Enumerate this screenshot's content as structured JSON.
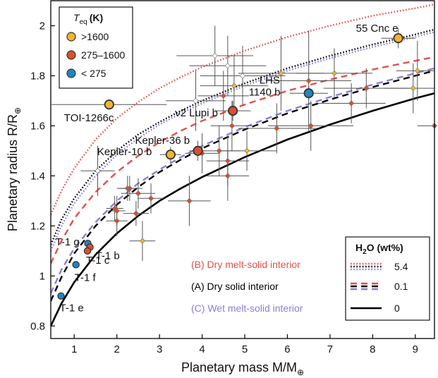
{
  "chart_data": {
    "type": "scatter",
    "xlabel": "Planetary mass M/M",
    "xlabel_sub": "⊕",
    "ylabel": "Planetary radius R/R",
    "ylabel_sub": "⊕",
    "xlim": [
      0.45,
      9.45
    ],
    "ylim": [
      0.75,
      2.1
    ],
    "xticks": [
      1,
      2,
      3,
      4,
      5,
      6,
      7,
      8,
      9
    ],
    "yticks": [
      0.8,
      1,
      1.2,
      1.4,
      1.6,
      1.8,
      2
    ],
    "grid": false,
    "legend_teq": {
      "title_main": "T",
      "title_sub": "eq",
      "title_unit": "(K)",
      "placement": "top-left",
      "entries": [
        {
          "label": ">1600",
          "color": "#f2b431"
        },
        {
          "label": "275–1600",
          "color": "#d9512c"
        },
        {
          "label": "< 275",
          "color": "#1f86c3"
        }
      ]
    },
    "legend_h2o": {
      "title_main": "H",
      "title_sub": "2",
      "title_rest": "O (wt%)",
      "placement": "bottom-right",
      "entries": [
        {
          "label": "5.4",
          "style": "dotted"
        },
        {
          "label": "0.1",
          "style": "dashed"
        },
        {
          "label": "0",
          "style": "solid"
        }
      ]
    },
    "series": [
      {
        "name": "(B) Dry melt-solid interior",
        "color": "#e0524a",
        "curves": [
          {
            "wt": "5.4",
            "style": "dotted",
            "points": [
              [
                0.45,
                1.245
              ],
              [
                0.7,
                1.34
              ],
              [
                1,
                1.43
              ],
              [
                1.5,
                1.545
              ],
              [
                2,
                1.63
              ],
              [
                2.5,
                1.695
              ],
              [
                3,
                1.75
              ],
              [
                3.5,
                1.795
              ],
              [
                4,
                1.835
              ],
              [
                5,
                1.9
              ],
              [
                6,
                1.955
              ],
              [
                7,
                2.0
              ],
              [
                8,
                2.04
              ],
              [
                9,
                2.07
              ],
              [
                9.45,
                2.085
              ]
            ]
          },
          {
            "wt": "0.1",
            "style": "dashed",
            "points": [
              [
                0.45,
                1.05
              ],
              [
                0.7,
                1.14
              ],
              [
                1,
                1.23
              ],
              [
                1.5,
                1.335
              ],
              [
                2,
                1.415
              ],
              [
                2.5,
                1.48
              ],
              [
                3,
                1.535
              ],
              [
                3.5,
                1.58
              ],
              [
                4,
                1.62
              ],
              [
                5,
                1.685
              ],
              [
                6,
                1.74
              ],
              [
                7,
                1.785
              ],
              [
                8,
                1.825
              ],
              [
                9,
                1.86
              ],
              [
                9.45,
                1.875
              ]
            ]
          }
        ]
      },
      {
        "name": "(A) Dry solid interior",
        "color": "#000000",
        "curves": [
          {
            "wt": "5.4",
            "style": "dotted",
            "points": [
              [
                0.45,
                1.125
              ],
              [
                0.7,
                1.225
              ],
              [
                1,
                1.31
              ],
              [
                1.5,
                1.42
              ],
              [
                2,
                1.5
              ],
              [
                2.5,
                1.565
              ],
              [
                3,
                1.615
              ],
              [
                3.5,
                1.66
              ],
              [
                4,
                1.7
              ],
              [
                5,
                1.77
              ],
              [
                6,
                1.83
              ],
              [
                7,
                1.88
              ],
              [
                8,
                1.925
              ],
              [
                9,
                1.965
              ],
              [
                9.45,
                1.985
              ]
            ]
          },
          {
            "wt": "0.1",
            "style": "dashed",
            "points": [
              [
                0.45,
                0.9
              ],
              [
                0.7,
                0.995
              ],
              [
                1,
                1.09
              ],
              [
                1.5,
                1.2
              ],
              [
                2,
                1.285
              ],
              [
                2.5,
                1.355
              ],
              [
                3,
                1.415
              ],
              [
                3.5,
                1.465
              ],
              [
                4,
                1.51
              ],
              [
                5,
                1.585
              ],
              [
                6,
                1.65
              ],
              [
                7,
                1.705
              ],
              [
                8,
                1.755
              ],
              [
                9,
                1.8
              ],
              [
                9.45,
                1.82
              ]
            ]
          },
          {
            "wt": "0",
            "style": "solid",
            "points": [
              [
                0.45,
                0.8
              ],
              [
                0.7,
                0.89
              ],
              [
                1,
                0.975
              ],
              [
                1.5,
                1.085
              ],
              [
                2,
                1.17
              ],
              [
                2.5,
                1.24
              ],
              [
                3,
                1.3
              ],
              [
                3.5,
                1.35
              ],
              [
                4,
                1.395
              ],
              [
                5,
                1.475
              ],
              [
                6,
                1.545
              ],
              [
                7,
                1.605
              ],
              [
                8,
                1.66
              ],
              [
                9,
                1.71
              ],
              [
                9.45,
                1.73
              ]
            ]
          }
        ]
      },
      {
        "name": "(C) Wet melt-solid interior",
        "color": "#8b7ed6",
        "curves": [
          {
            "wt": "5.4",
            "style": "dotted",
            "points": [
              [
                0.45,
                1.1
              ],
              [
                0.7,
                1.2
              ],
              [
                1,
                1.29
              ],
              [
                1.5,
                1.4
              ],
              [
                2,
                1.485
              ],
              [
                2.5,
                1.55
              ],
              [
                3,
                1.605
              ],
              [
                3.5,
                1.65
              ],
              [
                4,
                1.69
              ],
              [
                5,
                1.76
              ],
              [
                6,
                1.82
              ],
              [
                7,
                1.87
              ],
              [
                8,
                1.915
              ],
              [
                9,
                1.955
              ],
              [
                9.45,
                1.975
              ]
            ]
          },
          {
            "wt": "0.1",
            "style": "dashed",
            "points": [
              [
                0.45,
                0.93
              ],
              [
                0.7,
                1.025
              ],
              [
                1,
                1.11
              ],
              [
                1.5,
                1.215
              ],
              [
                2,
                1.3
              ],
              [
                2.5,
                1.37
              ],
              [
                3,
                1.425
              ],
              [
                3.5,
                1.475
              ],
              [
                4,
                1.52
              ],
              [
                5,
                1.595
              ],
              [
                6,
                1.66
              ],
              [
                7,
                1.715
              ],
              [
                8,
                1.765
              ],
              [
                9,
                1.81
              ],
              [
                9.45,
                1.83
              ]
            ]
          }
        ]
      }
    ],
    "planets": [
      {
        "name": "TOI-1266c",
        "mass": 1.82,
        "radius": 1.685,
        "xerr": 1.35,
        "yerr": 0.0,
        "cls": "hot",
        "label": "TOI-1266c"
      },
      {
        "name": "55 Cnc e",
        "mass": 8.6,
        "radius": 1.95,
        "xerr": 0.4,
        "yerr": 0.04,
        "cls": "hot",
        "label": "55 Cnc e"
      },
      {
        "name": "LHS 1140 b",
        "mass": 6.5,
        "radius": 1.73,
        "xerr": 0.45,
        "yerr": 0.03,
        "cls": "cold",
        "label": "LHS\n1140 b"
      },
      {
        "name": "ν2 Lupi b",
        "mass": 4.72,
        "radius": 1.66,
        "xerr": 0.42,
        "yerr": 0.04,
        "cls": "warm",
        "label": "ν2 Lupi b"
      },
      {
        "name": "Kepler-36 b",
        "mass": 3.9,
        "radius": 1.5,
        "xerr": 0.2,
        "yerr": 0.04,
        "cls": "warm",
        "label": "Kepler-36 b"
      },
      {
        "name": "Kepler-10 b",
        "mass": 3.26,
        "radius": 1.485,
        "xerr": 0.25,
        "yerr": 0.03,
        "cls": "hot",
        "label": "Kepler-10 b"
      },
      {
        "name": "T-1 g",
        "mass": 1.32,
        "radius": 1.13,
        "xerr": 0.04,
        "yerr": 0.015,
        "cls": "cold",
        "label": "T-1 g"
      },
      {
        "name": "T-1 b",
        "mass": 1.37,
        "radius": 1.115,
        "xerr": 0.04,
        "yerr": 0.015,
        "cls": "warm",
        "label": "T-1 b"
      },
      {
        "name": "T-1 c",
        "mass": 1.31,
        "radius": 1.1,
        "xerr": 0.04,
        "yerr": 0.015,
        "cls": "warm",
        "label": "T-1 c"
      },
      {
        "name": "T-1 f",
        "mass": 1.04,
        "radius": 1.045,
        "xerr": 0.03,
        "yerr": 0.013,
        "cls": "cold",
        "label": "T-1 f"
      },
      {
        "name": "T-1 e",
        "mass": 0.69,
        "radius": 0.92,
        "xerr": 0.03,
        "yerr": 0.013,
        "cls": "cold",
        "label": "T-1 e"
      }
    ],
    "others": [
      {
        "mass": 4.3,
        "radius": 1.88,
        "xerr": 0.9,
        "yerr": 0.12,
        "cls": "white"
      },
      {
        "mass": 4.6,
        "radius": 1.84,
        "xerr": 0.9,
        "yerr": 0.12,
        "cls": "white"
      },
      {
        "mass": 4.95,
        "radius": 1.8,
        "xerr": 1.0,
        "yerr": 0.12,
        "cls": "white"
      },
      {
        "mass": 3.85,
        "radius": 1.7,
        "xerr": 0.7,
        "yerr": 0.12,
        "cls": "white"
      },
      {
        "mass": 1.55,
        "radius": 1.42,
        "xerr": 0.4,
        "yerr": 0.1,
        "cls": "white"
      },
      {
        "mass": 4.75,
        "radius": 1.76,
        "xerr": 0.8,
        "yerr": 0.12,
        "cls": "hot"
      },
      {
        "mass": 5.85,
        "radius": 1.81,
        "xerr": 1.0,
        "yerr": 0.15,
        "cls": "hot"
      },
      {
        "mass": 7.1,
        "radius": 1.81,
        "xerr": 0.9,
        "yerr": 0.1,
        "cls": "hot"
      },
      {
        "mass": 9.05,
        "radius": 1.82,
        "xerr": 0.5,
        "yerr": 0.12,
        "cls": "hot"
      },
      {
        "mass": 8.95,
        "radius": 1.75,
        "xerr": 0.7,
        "yerr": 0.1,
        "cls": "hot"
      },
      {
        "mass": 5.05,
        "radius": 1.5,
        "xerr": 0.7,
        "yerr": 0.08,
        "cls": "hot"
      },
      {
        "mass": 5.75,
        "radius": 1.59,
        "xerr": 0.9,
        "yerr": 0.1,
        "cls": "warm"
      },
      {
        "mass": 6.55,
        "radius": 1.6,
        "xerr": 1.0,
        "yerr": 0.1,
        "cls": "warm"
      },
      {
        "mass": 6.5,
        "radius": 1.78,
        "xerr": 1.0,
        "yerr": 0.2,
        "cls": "warm"
      },
      {
        "mass": 7.5,
        "radius": 1.69,
        "xerr": 0.8,
        "yerr": 0.08,
        "cls": "warm"
      },
      {
        "mass": 7.85,
        "radius": 1.75,
        "xerr": 1.0,
        "yerr": 0.08,
        "cls": "warm"
      },
      {
        "mass": 4.5,
        "radius": 1.72,
        "xerr": 0.6,
        "yerr": 0.1,
        "cls": "warm"
      },
      {
        "mass": 4.7,
        "radius": 1.6,
        "xerr": 0.5,
        "yerr": 0.1,
        "cls": "warm"
      },
      {
        "mass": 4.6,
        "radius": 1.46,
        "xerr": 0.5,
        "yerr": 0.1,
        "cls": "warm"
      },
      {
        "mass": 4.4,
        "radius": 1.5,
        "xerr": 0.5,
        "yerr": 0.1,
        "cls": "warm"
      },
      {
        "mass": 4.6,
        "radius": 1.4,
        "xerr": 0.5,
        "yerr": 0.1,
        "cls": "warm"
      },
      {
        "mass": 4.0,
        "radius": 1.49,
        "xerr": 0.4,
        "yerr": 0.08,
        "cls": "warm"
      },
      {
        "mass": 3.7,
        "radius": 1.3,
        "xerr": 0.5,
        "yerr": 0.1,
        "cls": "warm"
      },
      {
        "mass": 2.8,
        "radius": 1.31,
        "xerr": 0.3,
        "yerr": 0.06,
        "cls": "warm"
      },
      {
        "mass": 2.5,
        "radius": 1.33,
        "xerr": 0.4,
        "yerr": 0.06,
        "cls": "warm"
      },
      {
        "mass": 2.3,
        "radius": 1.35,
        "xerr": 0.3,
        "yerr": 0.05,
        "cls": "warm"
      },
      {
        "mass": 2.45,
        "radius": 1.25,
        "xerr": 0.3,
        "yerr": 0.05,
        "cls": "warm"
      },
      {
        "mass": 2.25,
        "radius": 1.35,
        "xerr": 0.2,
        "yerr": 0.05,
        "cls": "warm"
      },
      {
        "mass": 2.0,
        "radius": 1.26,
        "xerr": 0.2,
        "yerr": 0.06,
        "cls": "warm"
      },
      {
        "mass": 2.0,
        "radius": 1.22,
        "xerr": 0.25,
        "yerr": 0.06,
        "cls": "warm"
      },
      {
        "mass": 1.95,
        "radius": 1.27,
        "xerr": 0.2,
        "yerr": 0.05,
        "cls": "warm"
      },
      {
        "mass": 2.6,
        "radius": 1.14,
        "xerr": 0.3,
        "yerr": 0.08,
        "cls": "hot"
      },
      {
        "mass": 9.45,
        "radius": 1.6,
        "xerr": 0.4,
        "yerr": 0.05,
        "cls": "warm"
      }
    ]
  },
  "model_labels": [
    {
      "text": "(B) Dry melt-solid interior",
      "color": "#e0524a"
    },
    {
      "text": "(A) Dry solid interior",
      "color": "#000000"
    },
    {
      "text": "(C) Wet melt-solid interior",
      "color": "#8b7ed6"
    }
  ]
}
